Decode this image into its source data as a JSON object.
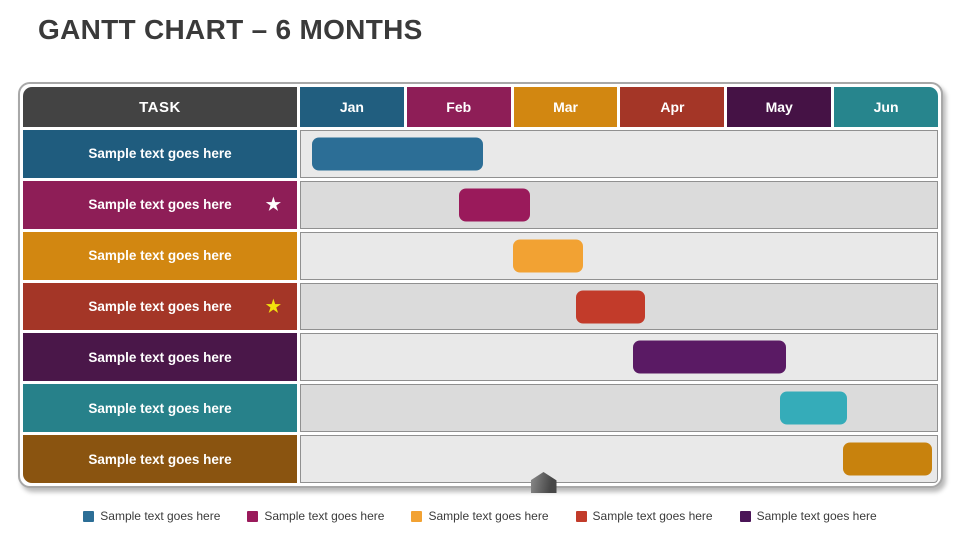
{
  "title": "GANTT CHART – 6 MONTHS",
  "colors": {
    "title_text": "#3a3a3a",
    "frame_border": "#a8a8a8",
    "task_header_bg": "#434343",
    "row_bg_odd": "#e9e9e9",
    "row_bg_even": "#dbdbdb",
    "timeline_border": "#909090",
    "marker_gray": "#555555"
  },
  "table": {
    "task_header": "TASK",
    "months": [
      {
        "label": "Jan",
        "color": "#215e7f"
      },
      {
        "label": "Feb",
        "color": "#8e1e57"
      },
      {
        "label": "Mar",
        "color": "#d28711"
      },
      {
        "label": "Apr",
        "color": "#a43627"
      },
      {
        "label": "May",
        "color": "#451245"
      },
      {
        "label": "Jun",
        "color": "#27858d"
      }
    ],
    "rows": [
      {
        "label": "Sample text goes here",
        "label_color": "#1f5c7e",
        "star_color": null
      },
      {
        "label": "Sample text goes here",
        "label_color": "#8e1e57",
        "star_color": "#ffffff"
      },
      {
        "label": "Sample text goes here",
        "label_color": "#d28711",
        "star_color": null
      },
      {
        "label": "Sample text goes here",
        "label_color": "#a43627",
        "star_color": "#f2e20d"
      },
      {
        "label": "Sample text goes here",
        "label_color": "#4a1749",
        "star_color": null
      },
      {
        "label": "Sample text goes here",
        "label_color": "#27818a",
        "star_color": null
      },
      {
        "label": "Sample text goes here",
        "label_color": "#8a5410",
        "star_color": null
      }
    ]
  },
  "chart_data": {
    "type": "bar",
    "subtype": "gantt",
    "title": "GANTT CHART – 6 MONTHS",
    "xlabel": "",
    "ylabel": "",
    "x_axis": {
      "unit": "months",
      "tick_labels": [
        "Jan",
        "Feb",
        "Mar",
        "Apr",
        "May",
        "Jun"
      ],
      "range": [
        0,
        6
      ]
    },
    "grid": false,
    "legend_position": "bottom",
    "tasks": [
      {
        "name": "Sample text goes here",
        "start_month": 0.1,
        "end_month": 1.72,
        "color": "#2c6e96"
      },
      {
        "name": "Sample text goes here",
        "start_month": 1.49,
        "end_month": 2.16,
        "color": "#9a1a5b"
      },
      {
        "name": "Sample text goes here",
        "start_month": 2.0,
        "end_month": 2.66,
        "color": "#f2a233"
      },
      {
        "name": "Sample text goes here",
        "start_month": 2.59,
        "end_month": 3.25,
        "color": "#c23b2a"
      },
      {
        "name": "Sample text goes here",
        "start_month": 3.13,
        "end_month": 4.58,
        "color": "#5a1a64"
      },
      {
        "name": "Sample text goes here",
        "start_month": 4.52,
        "end_month": 5.15,
        "color": "#35acb9"
      },
      {
        "name": "Sample text goes here",
        "start_month": 5.11,
        "end_month": 5.95,
        "color": "#c8820d"
      }
    ],
    "marker_month": 2.29
  },
  "legend": {
    "items": [
      {
        "label": "Sample text goes here",
        "color": "#2c6e96"
      },
      {
        "label": "Sample text goes here",
        "color": "#9a1a5b"
      },
      {
        "label": "Sample text goes here",
        "color": "#f2a233"
      },
      {
        "label": "Sample text goes here",
        "color": "#c23b2a"
      },
      {
        "label": "Sample text goes here",
        "color": "#4a1457"
      }
    ]
  }
}
